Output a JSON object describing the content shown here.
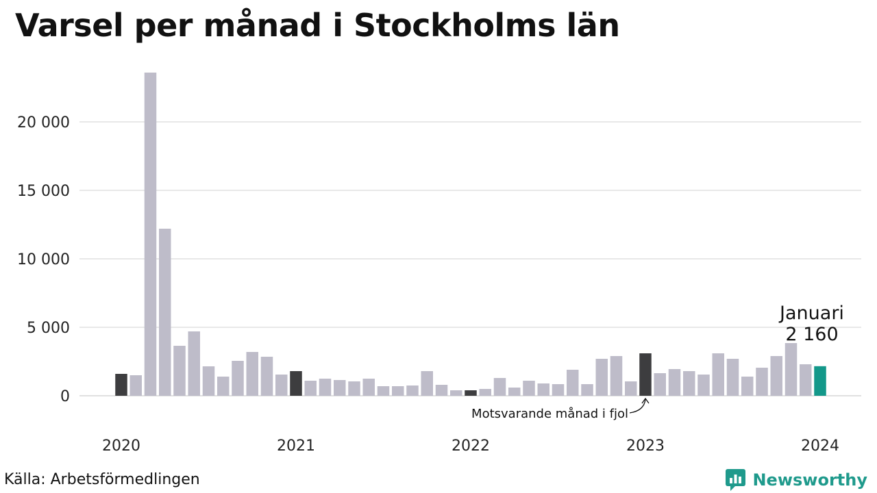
{
  "title": "Varsel per månad i Stockholms län",
  "source": "Källa: Arbetsförmedlingen",
  "brand": "Newsworthy",
  "colors": {
    "default": "#bebcc9",
    "same_month": "#3d3d3f",
    "latest": "#13988a",
    "grid": "#e0e0e0",
    "brand": "#1f9a8c"
  },
  "annotation": "Motsvarande månad i fjol",
  "highlight": {
    "month": "Januari",
    "value_label": "2 160"
  },
  "chart_data": {
    "type": "bar",
    "ylim": [
      0,
      25000
    ],
    "yticks": [
      {
        "value": 0,
        "label": "0"
      },
      {
        "value": 5000,
        "label": "5 000"
      },
      {
        "value": 10000,
        "label": "10 000"
      },
      {
        "value": 15000,
        "label": "15 000"
      },
      {
        "value": 20000,
        "label": "20 000"
      }
    ],
    "xlabels": [
      {
        "index": 0,
        "label": "2020"
      },
      {
        "index": 12,
        "label": "2021"
      },
      {
        "index": 24,
        "label": "2022"
      },
      {
        "index": 36,
        "label": "2023"
      },
      {
        "index": 48,
        "label": "2024"
      }
    ],
    "grid": true,
    "values": [
      1600,
      1500,
      23600,
      12200,
      3650,
      4700,
      2150,
      1400,
      2550,
      3200,
      2850,
      1550,
      1800,
      1100,
      1250,
      1150,
      1050,
      1250,
      700,
      700,
      750,
      1800,
      800,
      400,
      400,
      500,
      1300,
      600,
      1100,
      900,
      850,
      1900,
      850,
      2700,
      2900,
      1050,
      3100,
      1650,
      1950,
      1800,
      1550,
      3100,
      2700,
      1400,
      2050,
      2900,
      3850,
      2300,
      2160
    ],
    "highlight_indices": [
      0,
      12,
      24,
      36,
      48
    ]
  }
}
